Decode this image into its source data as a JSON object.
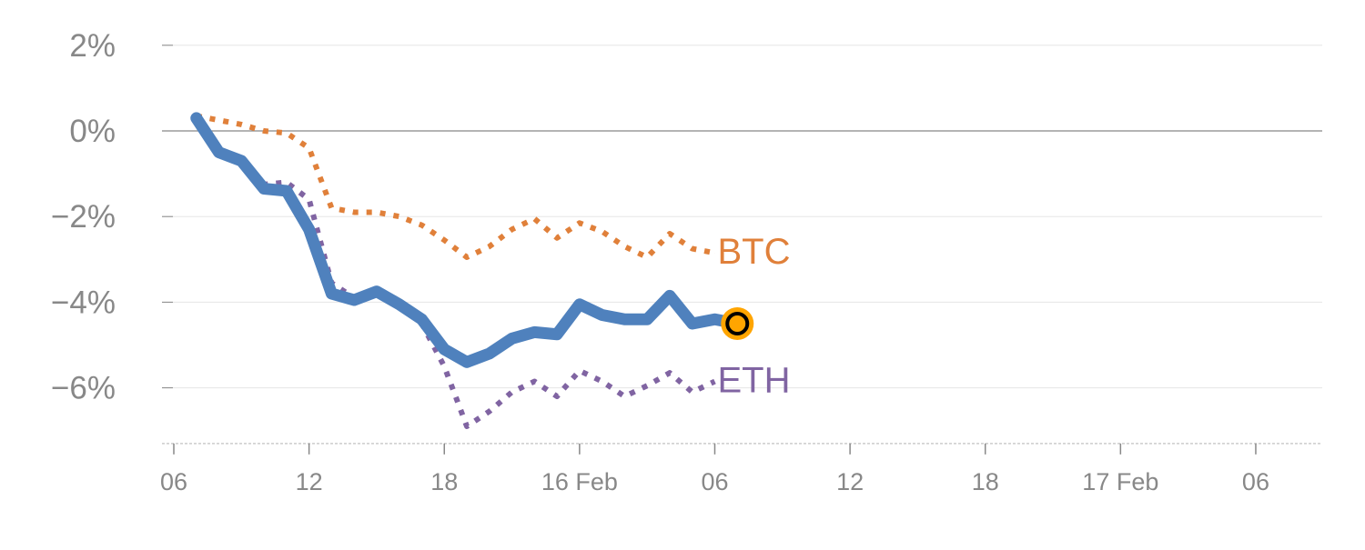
{
  "chart_data": {
    "type": "line",
    "title": "",
    "xlabel": "",
    "ylabel": "",
    "ylim": [
      -7.3,
      2
    ],
    "xlim": [
      0,
      51
    ],
    "grid": true,
    "yticks": [
      {
        "value": 2,
        "label": "2%"
      },
      {
        "value": 0,
        "label": "0%"
      },
      {
        "value": -2,
        "label": "−2%"
      },
      {
        "value": -4,
        "label": "−4%"
      },
      {
        "value": -6,
        "label": "−6%"
      }
    ],
    "xticks": [
      {
        "value": 0,
        "label": "06"
      },
      {
        "value": 6,
        "label": "12"
      },
      {
        "value": 12,
        "label": "18"
      },
      {
        "value": 18,
        "label": "16 Feb"
      },
      {
        "value": 24,
        "label": "06"
      },
      {
        "value": 30,
        "label": "12"
      },
      {
        "value": 36,
        "label": "18"
      },
      {
        "value": 42,
        "label": "17 Feb"
      },
      {
        "value": 48,
        "label": "06"
      }
    ],
    "series": [
      {
        "name": "main",
        "label": "",
        "color": "#4f81bd",
        "style": "solid",
        "x": [
          1,
          2,
          3,
          4,
          5,
          6,
          7,
          8,
          9,
          10,
          11,
          12,
          13,
          14,
          15,
          16,
          17,
          18,
          19,
          20,
          21,
          22,
          23,
          24,
          25
        ],
        "values": [
          0.3,
          -0.5,
          -0.7,
          -1.35,
          -1.4,
          -2.3,
          -3.8,
          -3.95,
          -3.75,
          -4.05,
          -4.4,
          -5.1,
          -5.4,
          -5.2,
          -4.85,
          -4.7,
          -4.75,
          -4.05,
          -4.3,
          -4.4,
          -4.4,
          -3.85,
          -4.5,
          -4.4,
          -4.5
        ]
      },
      {
        "name": "BTC",
        "label": "BTC",
        "color": "#e0803a",
        "style": "dotted",
        "x": [
          1,
          2,
          3,
          4,
          5,
          6,
          7,
          8,
          9,
          10,
          11,
          12,
          13,
          14,
          15,
          16,
          17,
          18,
          19,
          20,
          21,
          22,
          23,
          24
        ],
        "values": [
          0.35,
          0.25,
          0.15,
          0,
          -0.05,
          -0.4,
          -1.8,
          -1.9,
          -1.9,
          -2.0,
          -2.2,
          -2.55,
          -2.95,
          -2.7,
          -2.3,
          -2.05,
          -2.5,
          -2.15,
          -2.35,
          -2.7,
          -2.95,
          -2.4,
          -2.75,
          -2.85
        ]
      },
      {
        "name": "ETH",
        "label": "ETH",
        "color": "#8064a2",
        "style": "dotted",
        "x": [
          1,
          2,
          3,
          4,
          5,
          6,
          7,
          8,
          9,
          10,
          11,
          12,
          13,
          14,
          15,
          16,
          17,
          18,
          19,
          20,
          21,
          22,
          23,
          24
        ],
        "values": [
          0.25,
          -0.55,
          -0.7,
          -1.25,
          -1.2,
          -1.6,
          -3.55,
          -3.9,
          -3.75,
          -3.95,
          -4.5,
          -5.5,
          -6.9,
          -6.55,
          -6.1,
          -5.85,
          -6.2,
          -5.6,
          -5.85,
          -6.2,
          -5.95,
          -5.65,
          -6.1,
          -5.85
        ]
      }
    ],
    "marker": {
      "x": 25,
      "value": -4.5,
      "fill": "#ffa500",
      "stroke": "#000000"
    }
  }
}
